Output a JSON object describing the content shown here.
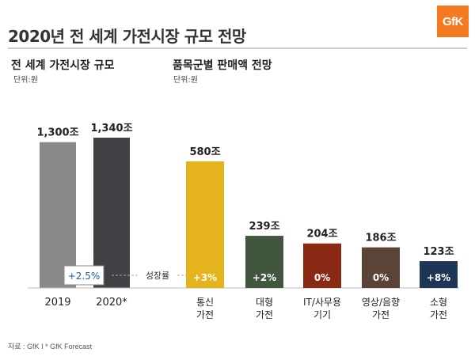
{
  "title": "2020년 전 세계 가전시장 규모 전망",
  "logo_text": "GfK",
  "left_panel": {
    "heading": "전 세계 가전시장 규모",
    "unit": "단위:원"
  },
  "right_panel": {
    "heading": "품목군별 판매액 전망",
    "unit": "단위:원"
  },
  "growth_label": "성장률",
  "source": "자료 : GfK I * GfK Forecast",
  "chart_data": [
    {
      "type": "bar",
      "title": "전 세계 가전시장 규모",
      "unit": "단위:원",
      "categories": [
        "2019",
        "2020*"
      ],
      "values": [
        1300,
        1340
      ],
      "value_labels": [
        "1,300조",
        "1,340조"
      ],
      "colors": [
        "#8a8a8c",
        "#3f4144"
      ],
      "growth": "+2.5%"
    },
    {
      "type": "bar",
      "title": "품목군별 판매액 전망",
      "unit": "단위:원",
      "categories": [
        "통신\n가전",
        "대형\n가전",
        "IT/사무용\n기기",
        "영상/음향\n가전",
        "소형\n가전"
      ],
      "values": [
        580,
        239,
        204,
        186,
        123
      ],
      "value_labels": [
        "580조",
        "239조",
        "204조",
        "186조",
        "123조"
      ],
      "growth": [
        "+3%",
        "+2%",
        "0%",
        "0%",
        "+8%"
      ],
      "colors": [
        "#e5b41c",
        "#40573e",
        "#8a2a14",
        "#5b4338",
        "#1e3656"
      ]
    }
  ]
}
